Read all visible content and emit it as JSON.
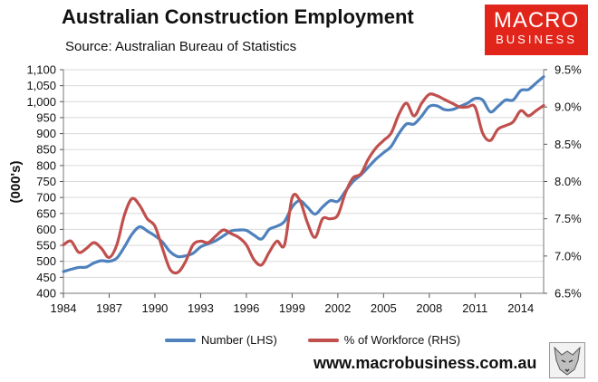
{
  "header": {
    "title": "Australian Construction Employment",
    "source": "Source: Australian Bureau of Statistics"
  },
  "logo": {
    "line1": "MACRO",
    "line2": "BUSINESS",
    "color": "#e1251b"
  },
  "footer": {
    "url": "www.macrobusiness.com.au"
  },
  "colors": {
    "number": "#4f81bd",
    "workforce": "#c0504d",
    "grid": "#d9d9d9"
  },
  "chart_data": {
    "type": "line",
    "title": "Australian Construction Employment",
    "ylabel": "(000's)",
    "xlabel": "",
    "xlim": [
      1984,
      2015.5
    ],
    "ylim": [
      400,
      1100
    ],
    "y2lim": [
      6.5,
      9.5
    ],
    "x_ticks": [
      "1984",
      "1987",
      "1990",
      "1993",
      "1996",
      "1999",
      "2002",
      "2005",
      "2008",
      "2011",
      "2014"
    ],
    "y_ticks": [
      "400",
      "450",
      "500",
      "550",
      "600",
      "650",
      "700",
      "750",
      "800",
      "850",
      "900",
      "950",
      "1,000",
      "1,050",
      "1,100"
    ],
    "y2_ticks": [
      "6.5%",
      "7.0%",
      "7.5%",
      "8.0%",
      "8.5%",
      "9.0%",
      "9.5%"
    ],
    "grid": true,
    "legend_position": "bottom",
    "series": [
      {
        "name": "Number (LHS)",
        "axis": "left",
        "x": [
          1984,
          1984.5,
          1985,
          1985.5,
          1986,
          1986.5,
          1987,
          1987.5,
          1988,
          1988.5,
          1989,
          1989.5,
          1990,
          1990.5,
          1991,
          1991.5,
          1992,
          1992.5,
          1993,
          1993.5,
          1994,
          1994.5,
          1995,
          1995.5,
          1996,
          1996.5,
          1997,
          1997.5,
          1998,
          1998.5,
          1999,
          1999.5,
          2000,
          2000.5,
          2001,
          2001.5,
          2002,
          2002.5,
          2003,
          2003.5,
          2004,
          2004.5,
          2005,
          2005.5,
          2006,
          2006.5,
          2007,
          2007.5,
          2008,
          2008.5,
          2009,
          2009.5,
          2010,
          2010.5,
          2011,
          2011.5,
          2012,
          2012.5,
          2013,
          2013.5,
          2014,
          2014.5,
          2015,
          2015.5
        ],
        "values": [
          468,
          475,
          481,
          482,
          495,
          502,
          500,
          510,
          545,
          585,
          608,
          595,
          580,
          560,
          530,
          515,
          517,
          525,
          545,
          555,
          565,
          580,
          595,
          598,
          597,
          582,
          570,
          600,
          610,
          625,
          670,
          690,
          670,
          648,
          670,
          690,
          688,
          720,
          750,
          770,
          795,
          820,
          840,
          860,
          900,
          930,
          930,
          955,
          985,
          987,
          975,
          975,
          985,
          995,
          1010,
          1005,
          968,
          985,
          1005,
          1005,
          1035,
          1038,
          1058,
          1078
        ]
      },
      {
        "name": "% of Workforce (RHS)",
        "axis": "right",
        "x": [
          1984,
          1984.5,
          1985,
          1985.5,
          1986,
          1986.5,
          1987,
          1987.5,
          1988,
          1988.5,
          1989,
          1989.5,
          1990,
          1990.5,
          1991,
          1991.5,
          1992,
          1992.5,
          1993,
          1993.5,
          1994,
          1994.5,
          1995,
          1995.5,
          1996,
          1996.5,
          1997,
          1997.5,
          1998,
          1998.5,
          1999,
          1999.5,
          2000,
          2000.5,
          2001,
          2001.5,
          2002,
          2002.5,
          2003,
          2003.5,
          2004,
          2004.5,
          2005,
          2005.5,
          2006,
          2006.5,
          2007,
          2007.5,
          2008,
          2008.5,
          2009,
          2009.5,
          2010,
          2010.5,
          2011,
          2011.5,
          2012,
          2012.5,
          2013,
          2013.5,
          2014,
          2014.5,
          2015,
          2015.5
        ],
        "values": [
          7.15,
          7.2,
          7.05,
          7.1,
          7.18,
          7.1,
          6.98,
          7.15,
          7.55,
          7.77,
          7.68,
          7.5,
          7.4,
          7.1,
          6.82,
          6.78,
          6.92,
          7.15,
          7.2,
          7.18,
          7.27,
          7.35,
          7.3,
          7.25,
          7.15,
          6.95,
          6.88,
          7.05,
          7.2,
          7.15,
          7.78,
          7.75,
          7.45,
          7.25,
          7.5,
          7.5,
          7.55,
          7.85,
          8.05,
          8.1,
          8.3,
          8.45,
          8.55,
          8.65,
          8.9,
          9.05,
          8.88,
          9.05,
          9.17,
          9.15,
          9.1,
          9.05,
          9.0,
          9.0,
          9.0,
          8.65,
          8.55,
          8.7,
          8.75,
          8.8,
          8.95,
          8.88,
          8.95,
          9.02
        ]
      }
    ]
  }
}
